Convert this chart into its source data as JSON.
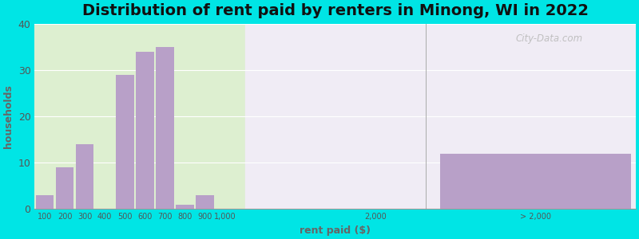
{
  "title": "Distribution of rent paid by renters in Minong, WI in 2022",
  "xlabel": "rent paid ($)",
  "ylabel": "households",
  "bar_color": "#b8a0c8",
  "background_outer": "#00e5e5",
  "background_inner_left": "#ddefd0",
  "background_inner_right": "#f0ecf5",
  "ylim": [
    0,
    40
  ],
  "yticks": [
    0,
    10,
    20,
    30,
    40
  ],
  "categories": [
    "100",
    "200",
    "300",
    "400",
    "500",
    "600",
    "700",
    "800",
    "900",
    "1,000",
    "2,000",
    "> 2,000"
  ],
  "values": [
    3,
    9,
    14,
    0,
    29,
    34,
    35,
    1,
    3,
    0,
    0,
    12
  ],
  "title_fontsize": 14,
  "axis_fontsize": 9,
  "tick_fontsize": 7,
  "watermark": "City-Data.com"
}
